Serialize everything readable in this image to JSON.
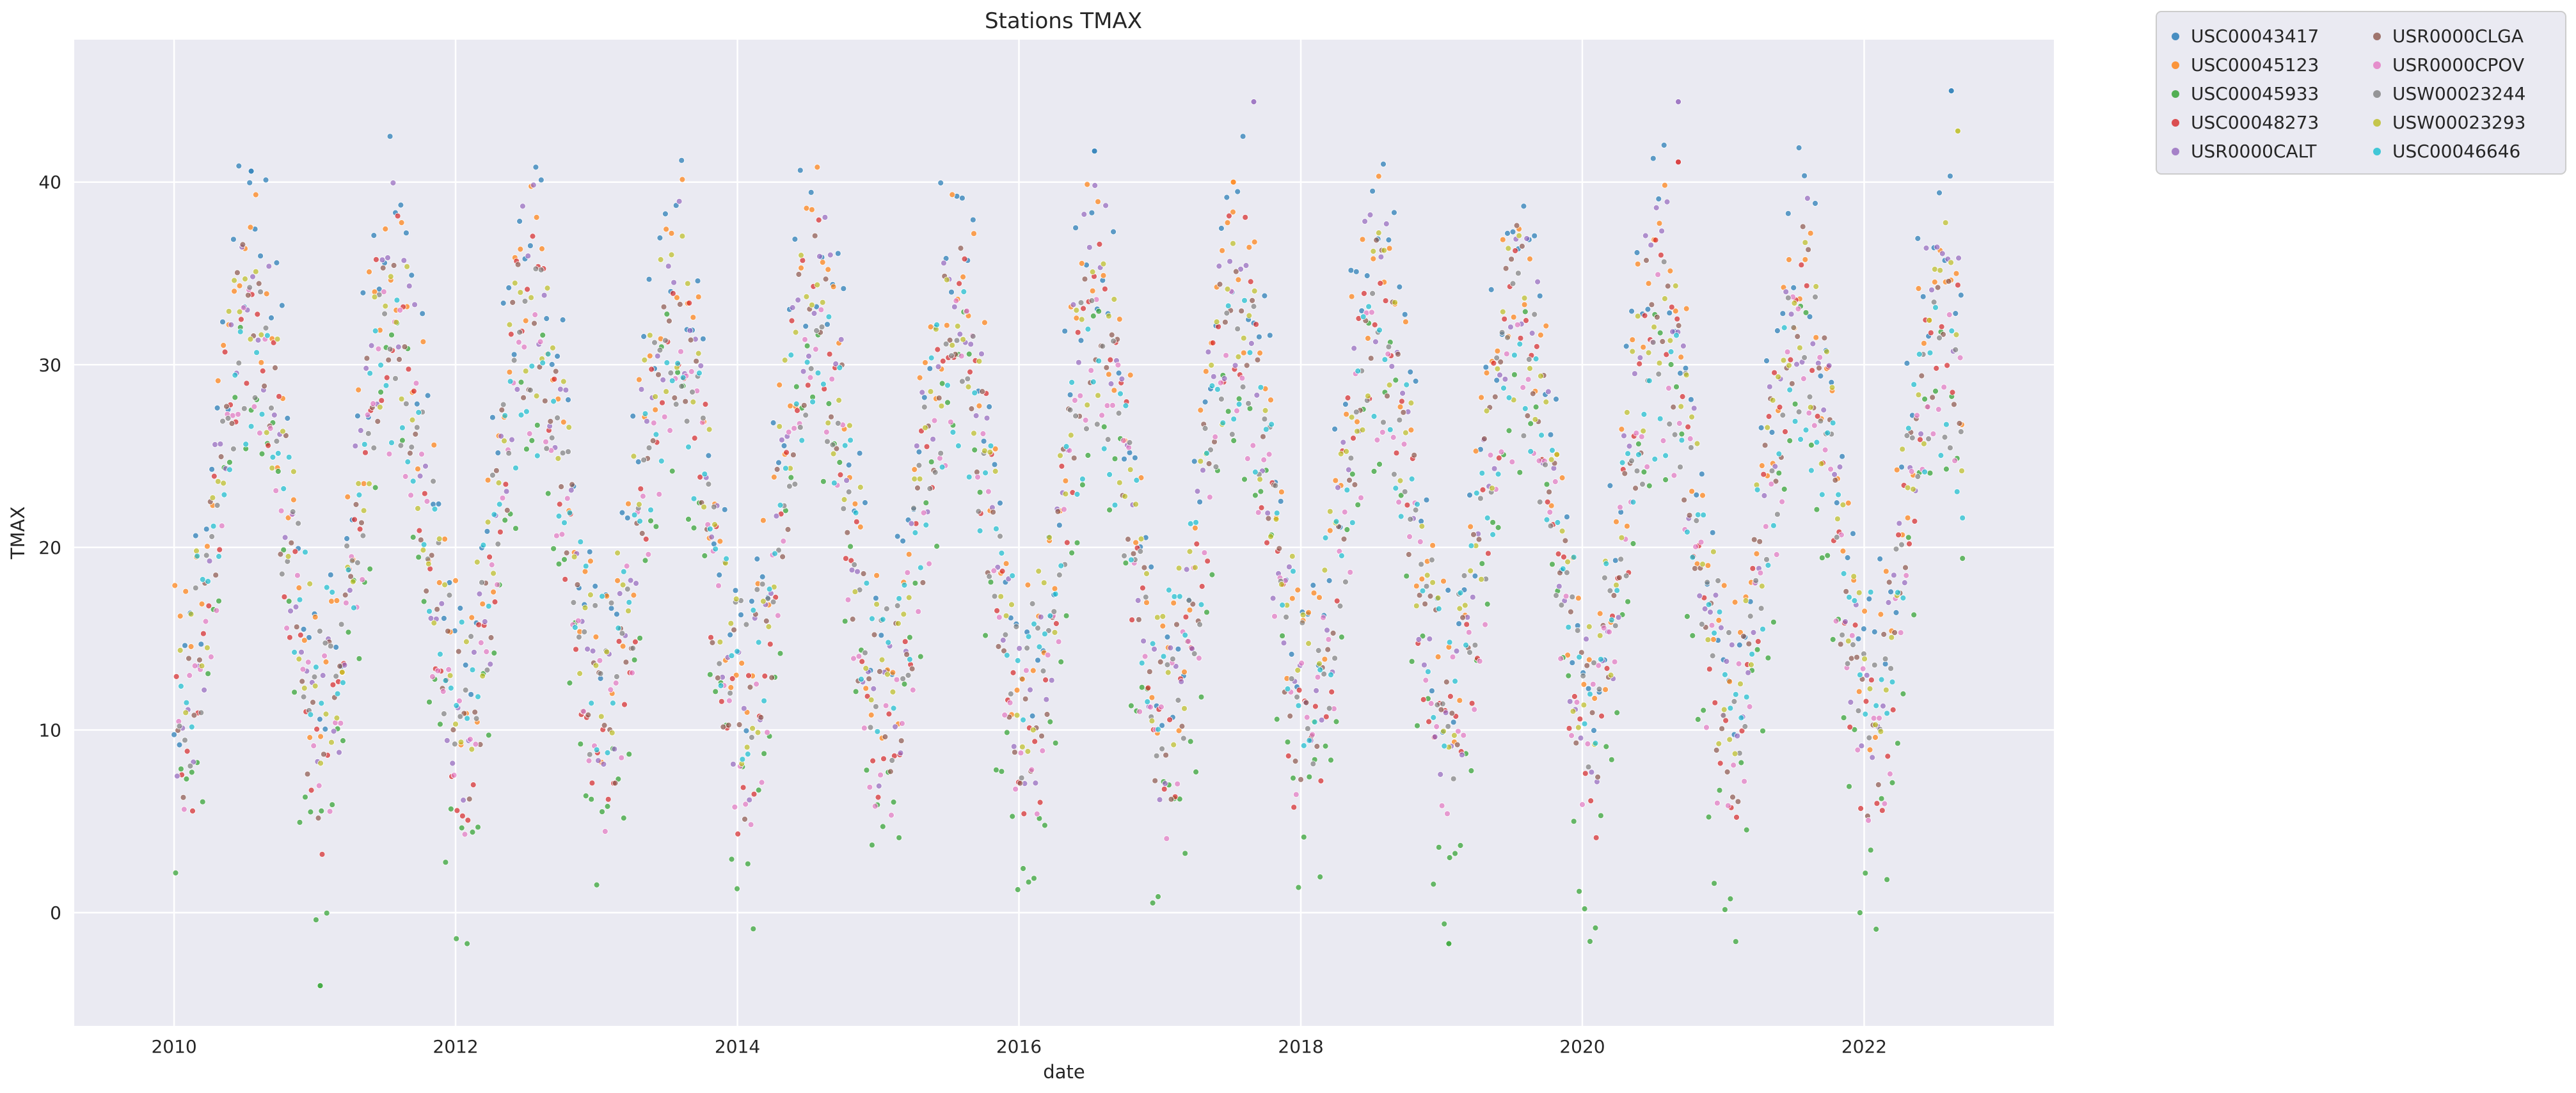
{
  "chart_data": {
    "type": "scatter",
    "title": "Stations TMAX",
    "xlabel": "date",
    "ylabel": "TMAX",
    "x_unit": "date",
    "xlim": [
      "2009-04-17",
      "2023-05-08"
    ],
    "ylim": [
      -6.2,
      47.8
    ],
    "x_ticks": [
      {
        "value": "2010-01-01",
        "label": "2010"
      },
      {
        "value": "2012-01-01",
        "label": "2012"
      },
      {
        "value": "2014-01-01",
        "label": "2014"
      },
      {
        "value": "2016-01-01",
        "label": "2016"
      },
      {
        "value": "2018-01-01",
        "label": "2018"
      },
      {
        "value": "2020-01-01",
        "label": "2020"
      },
      {
        "value": "2022-01-01",
        "label": "2022"
      }
    ],
    "y_ticks": [
      {
        "value": 0,
        "label": "0"
      },
      {
        "value": 10,
        "label": "10"
      },
      {
        "value": 20,
        "label": "20"
      },
      {
        "value": 30,
        "label": "30"
      },
      {
        "value": 40,
        "label": "40"
      }
    ],
    "grid": true,
    "background": "#eaeaf2",
    "legend_position": "outside-top-right",
    "legend_columns": 2,
    "seasonal_pattern": {
      "annual_peak": "July",
      "annual_trough": "January"
    },
    "series": [
      {
        "name": "USC00043417",
        "color": "#1f77b4",
        "summer_peak": 38,
        "winter_base": 14,
        "peaks": [
          {
            "date": "2010-07-20",
            "value": 40.6
          },
          {
            "date": "2016-07-15",
            "value": 41.7
          },
          {
            "date": "2022-08-15",
            "value": 45.0
          }
        ]
      },
      {
        "name": "USC00045123",
        "color": "#ff7f0e",
        "summer_peak": 36,
        "winter_base": 13,
        "peaks": [
          {
            "date": "2017-07-10",
            "value": 40.0
          }
        ]
      },
      {
        "name": "USC00045933",
        "color": "#2ca02c",
        "summer_peak": 29,
        "winter_base": 3,
        "lows": [
          {
            "date": "2011-01-15",
            "value": -4.0
          },
          {
            "date": "2019-01-20",
            "value": -1.7
          }
        ]
      },
      {
        "name": "USC00048273",
        "color": "#d62728",
        "summer_peak": 34,
        "winter_base": 8,
        "peaks": [
          {
            "date": "2020-09-06",
            "value": 41.1
          }
        ]
      },
      {
        "name": "USR0000CALT",
        "color": "#9467bd",
        "summer_peak": 35,
        "winter_base": 10,
        "peaks": [
          {
            "date": "2017-09-01",
            "value": 44.4
          },
          {
            "date": "2020-09-06",
            "value": 44.4
          }
        ]
      },
      {
        "name": "USR0000CLGA",
        "color": "#8c564b",
        "summer_peak": 33,
        "winter_base": 10
      },
      {
        "name": "USR0000CPOV",
        "color": "#e377c2",
        "summer_peak": 30,
        "winter_base": 9
      },
      {
        "name": "USW00023244",
        "color": "#7f7f7f",
        "summer_peak": 31,
        "winter_base": 12
      },
      {
        "name": "USW00023293",
        "color": "#bcbd22",
        "summer_peak": 33,
        "winter_base": 13,
        "peaks": [
          {
            "date": "2022-09-01",
            "value": 42.8
          }
        ]
      },
      {
        "name": "USC00046646",
        "color": "#17becf",
        "summer_peak": 30,
        "winter_base": 13
      }
    ]
  }
}
